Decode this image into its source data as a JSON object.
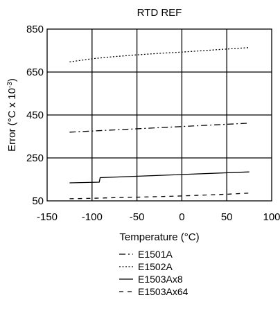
{
  "chart_data": {
    "type": "line",
    "title": "RTD REF",
    "xlabel": "Temperature (°C)",
    "ylabel_main": "Error (°C x 10",
    "ylabel_sup": "-3",
    "ylabel_end": ")",
    "xlim": [
      -150,
      100
    ],
    "ylim": [
      50,
      850
    ],
    "xticks": [
      -150,
      -100,
      -50,
      0,
      50,
      100
    ],
    "yticks": [
      50,
      250,
      450,
      650,
      850
    ],
    "grid": true,
    "legend_position": "bottom-center",
    "series": [
      {
        "name": "E1501A",
        "dash": "dashdot",
        "x": [
          -125,
          75
        ],
        "y": [
          370,
          412
        ]
      },
      {
        "name": "E1502A",
        "dash": "dotted",
        "x": [
          -125,
          -100,
          -75,
          -50,
          -25,
          0,
          25,
          50,
          75
        ],
        "y": [
          697,
          712,
          722,
          730,
          737,
          743,
          750,
          757,
          764
        ]
      },
      {
        "name": "E1503Ax8",
        "dash": "solid",
        "x": [
          -125,
          -92,
          -91,
          75
        ],
        "y": [
          134,
          137,
          158,
          185
        ]
      },
      {
        "name": "E1503Ax64",
        "dash": "dashed",
        "x": [
          -125,
          -100,
          -75,
          -50,
          -25,
          0,
          25,
          50,
          75
        ],
        "y": [
          60,
          62,
          65,
          67,
          70,
          73,
          77,
          81,
          86
        ]
      }
    ]
  }
}
